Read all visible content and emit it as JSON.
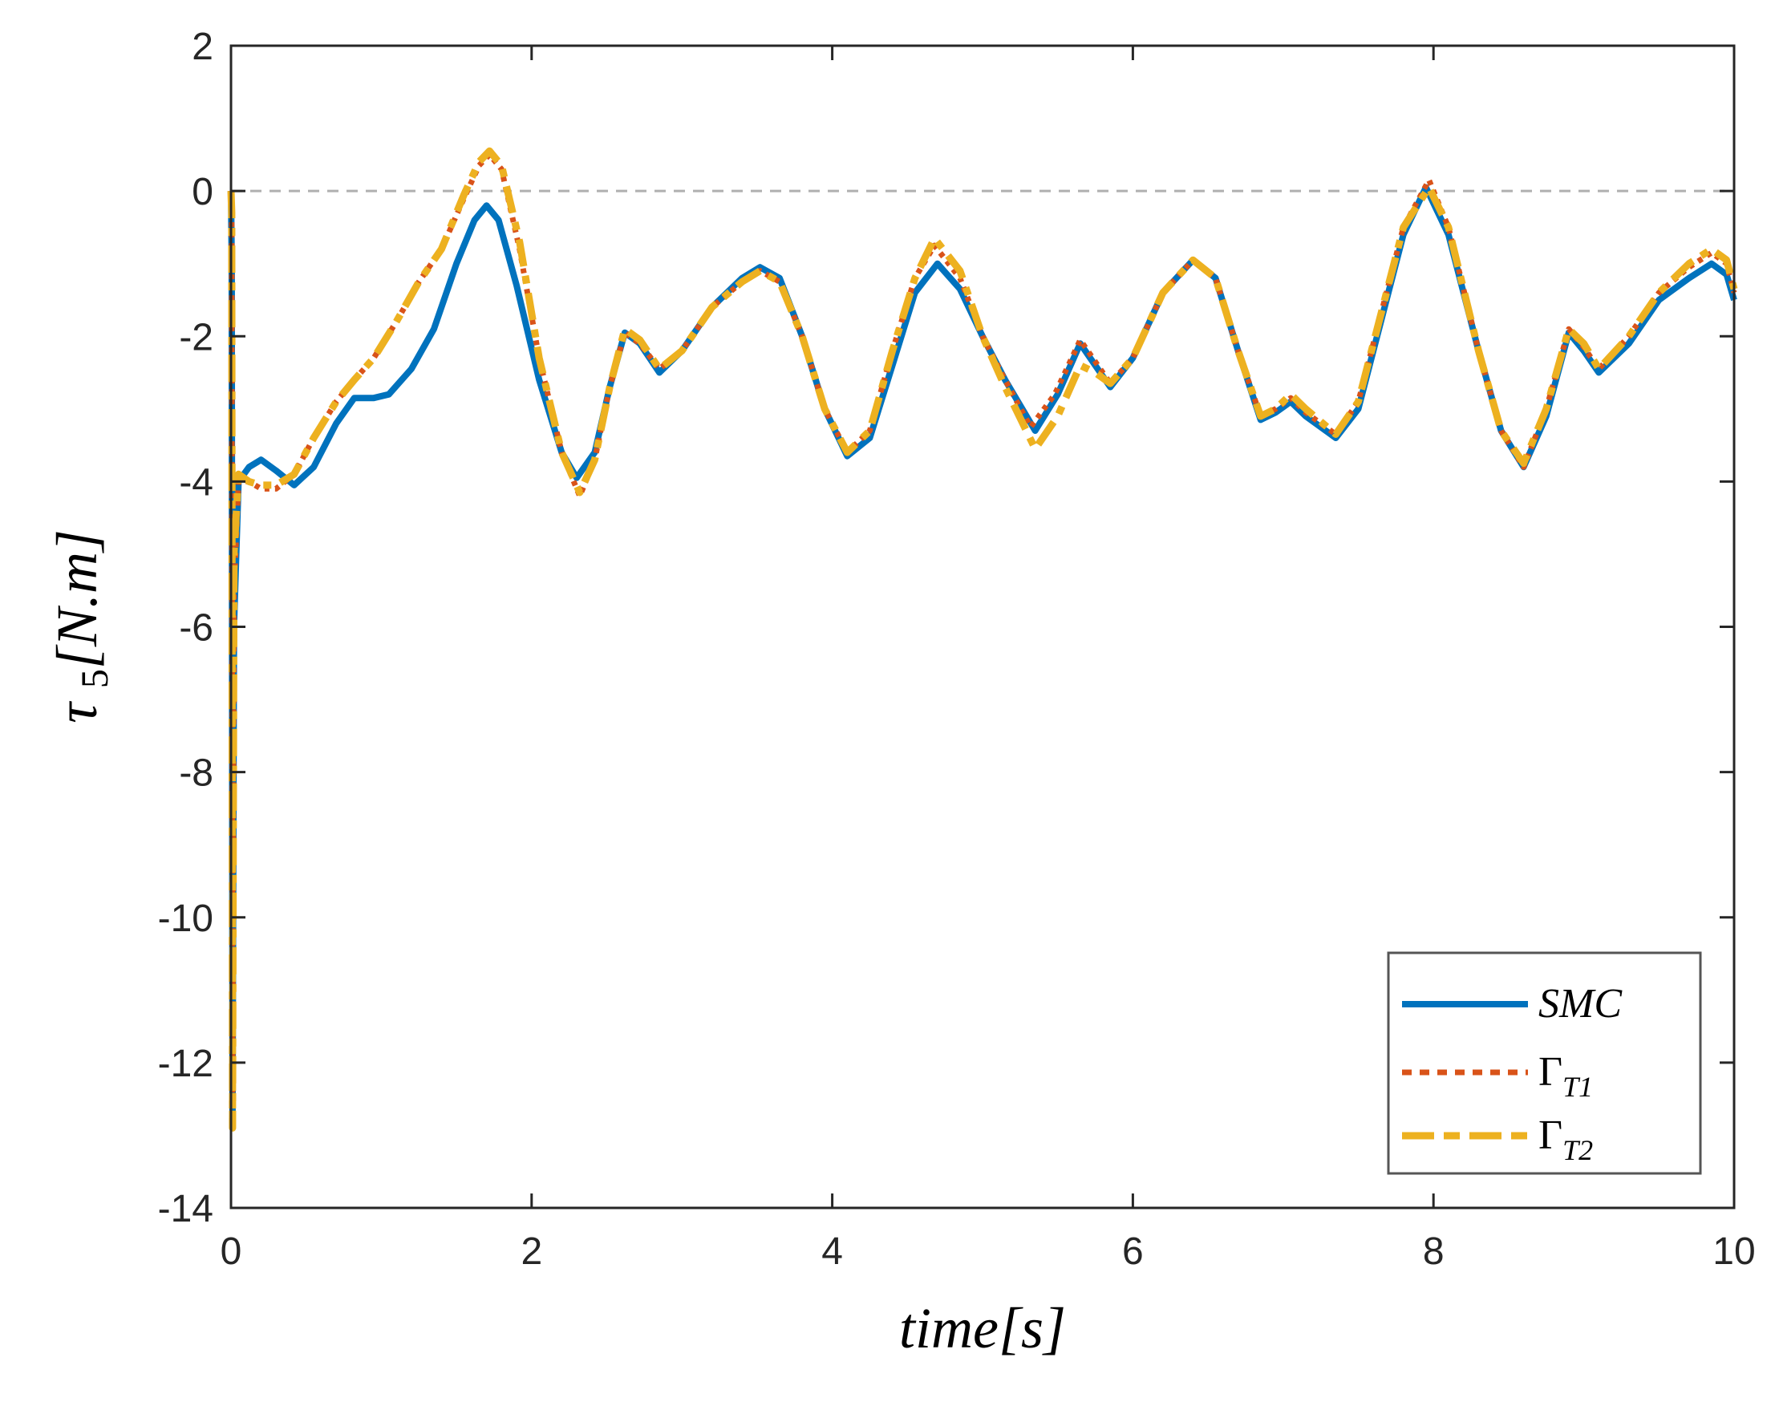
{
  "chart_data": {
    "type": "line",
    "title": "",
    "xlabel": "time[s]",
    "ylabel": "τ5[N.m]",
    "xlim": [
      0,
      10
    ],
    "ylim": [
      -14,
      2
    ],
    "xticks": [
      0,
      2,
      4,
      6,
      8,
      10
    ],
    "yticks": [
      2,
      0,
      -2,
      -4,
      -6,
      -8,
      -10,
      -12,
      -14
    ],
    "xtick_labels": [
      "0",
      "2",
      "4",
      "6",
      "8",
      "10"
    ],
    "ytick_labels": [
      "2",
      "0",
      "-2",
      "-4",
      "-6",
      "-8",
      "-10",
      "-12",
      "-14"
    ],
    "grid": false,
    "reference_line": {
      "y": 0,
      "style": "dashed",
      "color": "#b0b0b0"
    },
    "legend": {
      "position": "lower right",
      "entries": [
        "SMC",
        "ΓT1",
        "ΓT2"
      ]
    },
    "series": [
      {
        "name": "SMC",
        "label_main": "SMC",
        "label_sub": "",
        "color": "#0072BD",
        "style": "solid",
        "x": [
          0,
          0.005,
          0.01,
          0.02,
          0.05,
          0.12,
          0.2,
          0.3,
          0.42,
          0.55,
          0.7,
          0.82,
          0.95,
          1.05,
          1.2,
          1.35,
          1.5,
          1.62,
          1.7,
          1.78,
          1.9,
          2.05,
          2.2,
          2.3,
          2.42,
          2.52,
          2.62,
          2.72,
          2.85,
          3.0,
          3.2,
          3.4,
          3.52,
          3.65,
          3.8,
          3.95,
          4.1,
          4.25,
          4.4,
          4.55,
          4.7,
          4.85,
          5.0,
          5.15,
          5.35,
          5.5,
          5.65,
          5.75,
          5.85,
          6.0,
          6.2,
          6.4,
          6.55,
          6.7,
          6.85,
          6.95,
          7.05,
          7.15,
          7.35,
          7.5,
          7.65,
          7.8,
          7.95,
          8.1,
          8.3,
          8.45,
          8.6,
          8.75,
          8.9,
          9.0,
          9.1,
          9.3,
          9.5,
          9.7,
          9.85,
          9.95,
          10.0
        ],
        "y": [
          0,
          -1.0,
          -12.8,
          -6.0,
          -4.0,
          -3.8,
          -3.7,
          -3.85,
          -4.05,
          -3.8,
          -3.2,
          -2.85,
          -2.85,
          -2.8,
          -2.45,
          -1.9,
          -1.0,
          -0.4,
          -0.2,
          -0.4,
          -1.3,
          -2.6,
          -3.6,
          -3.95,
          -3.6,
          -2.7,
          -1.95,
          -2.1,
          -2.5,
          -2.2,
          -1.6,
          -1.2,
          -1.05,
          -1.2,
          -2.0,
          -3.0,
          -3.65,
          -3.4,
          -2.4,
          -1.4,
          -1.0,
          -1.35,
          -2.0,
          -2.6,
          -3.3,
          -2.8,
          -2.1,
          -2.4,
          -2.7,
          -2.3,
          -1.4,
          -0.95,
          -1.2,
          -2.2,
          -3.15,
          -3.05,
          -2.9,
          -3.1,
          -3.4,
          -3.0,
          -1.8,
          -0.6,
          0.05,
          -0.6,
          -2.2,
          -3.3,
          -3.8,
          -3.1,
          -1.95,
          -2.2,
          -2.5,
          -2.1,
          -1.5,
          -1.2,
          -1.0,
          -1.15,
          -1.5
        ]
      },
      {
        "name": "ΓT1",
        "label_main": "Γ",
        "label_sub": "T1",
        "color": "#D95319",
        "style": "dotted",
        "x": [
          0,
          0.005,
          0.01,
          0.02,
          0.05,
          0.12,
          0.2,
          0.3,
          0.42,
          0.55,
          0.7,
          0.82,
          0.95,
          1.1,
          1.25,
          1.4,
          1.55,
          1.65,
          1.72,
          1.8,
          1.92,
          2.05,
          2.2,
          2.32,
          2.42,
          2.52,
          2.62,
          2.72,
          2.85,
          3.0,
          3.2,
          3.4,
          3.52,
          3.65,
          3.8,
          3.95,
          4.1,
          4.25,
          4.4,
          4.55,
          4.68,
          4.85,
          5.0,
          5.15,
          5.32,
          5.48,
          5.65,
          5.75,
          5.85,
          6.0,
          6.2,
          6.4,
          6.55,
          6.7,
          6.85,
          6.95,
          7.05,
          7.15,
          7.35,
          7.5,
          7.65,
          7.8,
          7.97,
          8.1,
          8.3,
          8.45,
          8.6,
          8.75,
          8.9,
          9.0,
          9.1,
          9.3,
          9.5,
          9.7,
          9.85,
          9.95,
          10.0
        ],
        "y": [
          0,
          -0.5,
          -12.5,
          -5.5,
          -4.0,
          -4.0,
          -4.1,
          -4.1,
          -3.9,
          -3.4,
          -2.9,
          -2.6,
          -2.3,
          -1.8,
          -1.25,
          -0.8,
          -0.1,
          0.35,
          0.5,
          0.3,
          -0.8,
          -2.3,
          -3.6,
          -4.2,
          -3.7,
          -2.7,
          -1.95,
          -2.1,
          -2.45,
          -2.2,
          -1.6,
          -1.25,
          -1.1,
          -1.25,
          -2.0,
          -3.0,
          -3.6,
          -3.3,
          -2.2,
          -1.2,
          -0.75,
          -1.2,
          -2.0,
          -2.6,
          -3.25,
          -2.8,
          -2.05,
          -2.35,
          -2.65,
          -2.3,
          -1.4,
          -0.95,
          -1.2,
          -2.2,
          -3.1,
          -3.0,
          -2.85,
          -3.05,
          -3.35,
          -2.9,
          -1.7,
          -0.5,
          0.15,
          -0.5,
          -2.2,
          -3.3,
          -3.8,
          -3.0,
          -1.9,
          -2.15,
          -2.45,
          -2.0,
          -1.4,
          -1.05,
          -0.85,
          -1.0,
          -1.4
        ]
      },
      {
        "name": "ΓT2",
        "label_main": "Γ",
        "label_sub": "T2",
        "color": "#EDB120",
        "style": "dashdot",
        "x": [
          0,
          0.005,
          0.01,
          0.02,
          0.05,
          0.12,
          0.2,
          0.3,
          0.42,
          0.55,
          0.7,
          0.82,
          0.95,
          1.1,
          1.25,
          1.4,
          1.55,
          1.65,
          1.72,
          1.8,
          1.92,
          2.05,
          2.2,
          2.32,
          2.42,
          2.52,
          2.62,
          2.72,
          2.85,
          3.0,
          3.2,
          3.4,
          3.52,
          3.65,
          3.8,
          3.95,
          4.1,
          4.25,
          4.4,
          4.55,
          4.68,
          4.85,
          5.0,
          5.15,
          5.35,
          5.5,
          5.65,
          5.75,
          5.85,
          6.0,
          6.2,
          6.4,
          6.55,
          6.7,
          6.85,
          6.95,
          7.05,
          7.15,
          7.35,
          7.5,
          7.65,
          7.8,
          7.97,
          8.1,
          8.3,
          8.45,
          8.6,
          8.75,
          8.9,
          9.0,
          9.1,
          9.3,
          9.5,
          9.7,
          9.85,
          9.95,
          10.0
        ],
        "y": [
          0,
          -0.3,
          -12.9,
          -5.0,
          -3.9,
          -4.0,
          -4.05,
          -4.05,
          -3.9,
          -3.4,
          -2.9,
          -2.6,
          -2.3,
          -1.8,
          -1.25,
          -0.8,
          -0.05,
          0.4,
          0.55,
          0.35,
          -0.7,
          -2.3,
          -3.6,
          -4.15,
          -3.7,
          -2.7,
          -1.9,
          -2.05,
          -2.45,
          -2.2,
          -1.6,
          -1.25,
          -1.1,
          -1.25,
          -2.0,
          -3.0,
          -3.6,
          -3.3,
          -2.2,
          -1.2,
          -0.65,
          -1.1,
          -2.0,
          -2.7,
          -3.55,
          -3.1,
          -2.4,
          -2.5,
          -2.65,
          -2.3,
          -1.4,
          -0.95,
          -1.2,
          -2.2,
          -3.1,
          -3.0,
          -2.8,
          -3.0,
          -3.35,
          -2.9,
          -1.7,
          -0.5,
          0.05,
          -0.5,
          -2.2,
          -3.3,
          -3.75,
          -3.0,
          -1.9,
          -2.1,
          -2.45,
          -2.0,
          -1.4,
          -1.0,
          -0.8,
          -0.95,
          -1.35
        ]
      }
    ]
  }
}
